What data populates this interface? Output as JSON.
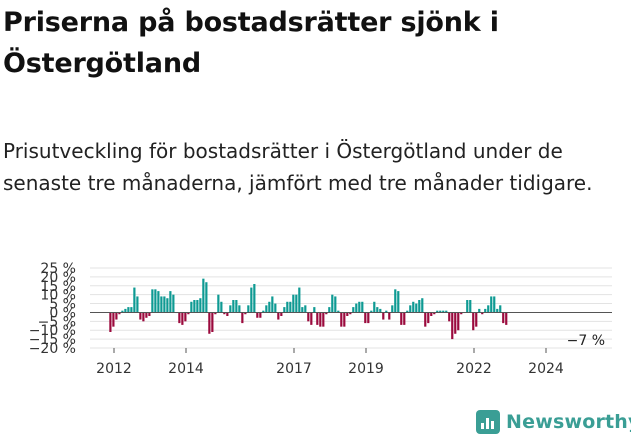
{
  "header": {
    "title": "Priserna på bostadsrätter sjönk i Östergötland",
    "subtitle": "Prisutveckling för bostadsrätter i Östergötland under de senaste tre månaderna, jämfört med tre månader tidigare."
  },
  "brand": {
    "name": "Newsworthy",
    "icon": "bar-chart-logo-icon",
    "color": "#3a9e95"
  },
  "chart_data": {
    "type": "bar",
    "title": "",
    "xlabel": "",
    "ylabel": "",
    "y_ticks": [
      "25 %",
      "20 %",
      "15 %",
      "10 %",
      "5 %",
      "0 %",
      "−5 %",
      "−10 %",
      "−15 %",
      "−20 %"
    ],
    "y_tick_values": [
      25,
      20,
      15,
      10,
      5,
      0,
      -5,
      -10,
      -15,
      -20
    ],
    "ylim": [
      -20,
      25
    ],
    "x_ticks": [
      "2012",
      "2014",
      "2017",
      "2019",
      "2022",
      "2024"
    ],
    "x_tick_values": [
      2012.0,
      2014.0,
      2017.0,
      2019.0,
      2022.0,
      2024.0
    ],
    "x_start": 2011.9,
    "x_step": 0.0833,
    "grid": true,
    "legend": "none",
    "positive_color": "#0e9a93",
    "negative_color": "#9b0a3d",
    "annotation": {
      "label": "−7 %",
      "value": -7
    },
    "values": [
      -11,
      -8,
      -4,
      -1,
      1,
      2,
      3,
      3,
      14,
      9,
      -4,
      -5,
      -3,
      -2,
      13,
      13,
      12,
      9,
      9,
      8,
      12,
      10,
      0,
      -6,
      -7,
      -5,
      -1,
      6,
      7,
      7,
      8,
      19,
      17,
      -12,
      -11,
      -1,
      10,
      6,
      -1,
      -2,
      4,
      7,
      7,
      4,
      -6,
      -1,
      4,
      14,
      16,
      -3,
      -3,
      1,
      4,
      6,
      9,
      5,
      -4,
      -2,
      3,
      6,
      6,
      10,
      10,
      14,
      3,
      4,
      -5,
      -7,
      3,
      -7,
      -8,
      -8,
      -1,
      3,
      10,
      9,
      1,
      -8,
      -8,
      -2,
      -1,
      3,
      5,
      6,
      6,
      -6,
      -6,
      1,
      6,
      3,
      2,
      -4,
      1,
      -4,
      4,
      13,
      12,
      -7,
      -7,
      1,
      4,
      6,
      5,
      7,
      8,
      -8,
      -6,
      -2,
      -1,
      1,
      1,
      1,
      1,
      -5,
      -15,
      -12,
      -10,
      -1,
      0,
      7,
      7,
      -10,
      -8,
      2,
      -1,
      2,
      4,
      9,
      9,
      2,
      4,
      -6,
      -7
    ]
  }
}
